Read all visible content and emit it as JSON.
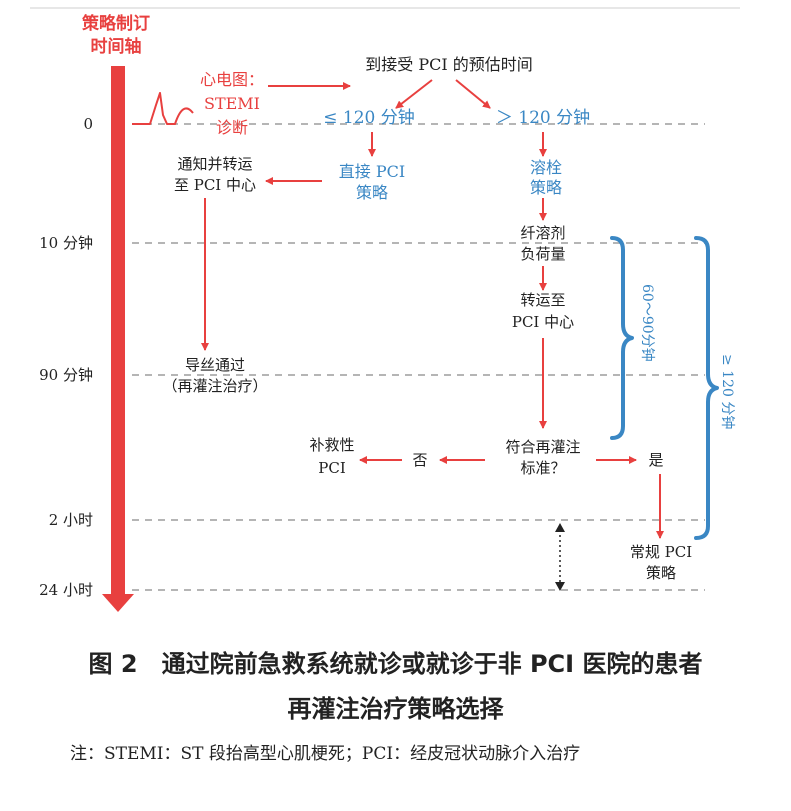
{
  "timeline": {
    "title_line1": "策略制订",
    "title_line2": "时间轴",
    "ticks": [
      "0",
      "10 分钟",
      "90 分钟",
      "2 小时",
      "24 小时"
    ]
  },
  "nodes": {
    "ecg_line1": "心电图：",
    "ecg_line2": "STEMI",
    "ecg_line3": "诊断",
    "estimate": "到接受 PCI 的预估时间",
    "le120": "≤ 120 分钟",
    "gt120": "＞ 120 分钟",
    "direct_pci_line1": "直接 PCI",
    "direct_pci_line2": "策略",
    "notify_line1": "通知并转运",
    "notify_line2": "至 PCI 中心",
    "lysis_line1": "溶栓",
    "lysis_line2": "策略",
    "fibrin_line1": "纤溶剂",
    "fibrin_line2": "负荷量",
    "transfer_line1": "转运至",
    "transfer_line2": "PCI 中心",
    "wire_line1": "导丝通过",
    "wire_line2": "（再灌注治疗）",
    "criteria_line1": "符合再灌注",
    "criteria_line2": "标准？",
    "no": "否",
    "yes": "是",
    "rescue_line1": "补救性",
    "rescue_line2": "PCI",
    "routine_line1": "常规 PCI",
    "routine_line2": "策略",
    "brace_60_90": "60～90分钟",
    "brace_ge120": "≥ 120 分钟"
  },
  "caption": {
    "line1": "图 2　通过院前急救系统就诊或就诊于非 PCI 医院的患者",
    "line2": "再灌注治疗策略选择"
  },
  "note": "注：STEMI：ST 段抬高型心肌梗死；PCI：经皮冠状动脉介入治疗",
  "colors": {
    "red": "#e8403f",
    "blue": "#3a87c4",
    "dash": "#b5b5b5",
    "text": "#222222"
  }
}
